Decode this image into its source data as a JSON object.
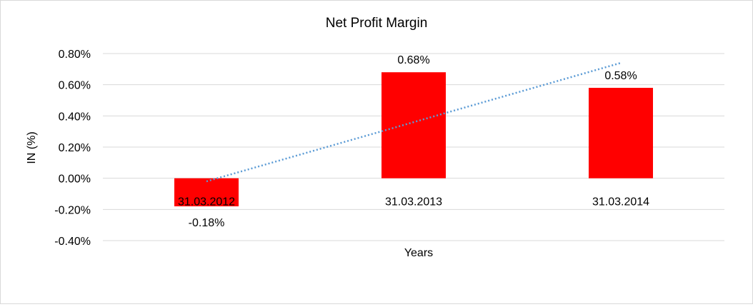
{
  "chart_data": {
    "type": "bar",
    "title": "Net Profit Margin",
    "xlabel": "Years",
    "ylabel": "IN (%)",
    "categories": [
      "31.03.2012",
      "31.03.2013",
      "31.03.2014"
    ],
    "values": [
      -0.18,
      0.68,
      0.58
    ],
    "data_labels": [
      "-0.18%",
      "0.68%",
      "0.58%"
    ],
    "ylim": [
      -0.4,
      0.8
    ],
    "yticks": [
      0.8,
      0.6,
      0.4,
      0.2,
      0.0,
      -0.2,
      -0.4
    ],
    "ytick_labels": [
      "0.80%",
      "0.60%",
      "0.40%",
      "0.20%",
      "0.00%",
      "-0.20%",
      "-0.40%"
    ],
    "grid": true,
    "bar_color": "#ff0000",
    "trendline": {
      "type": "linear",
      "style": "dotted",
      "color": "#5b9bd5"
    }
  }
}
